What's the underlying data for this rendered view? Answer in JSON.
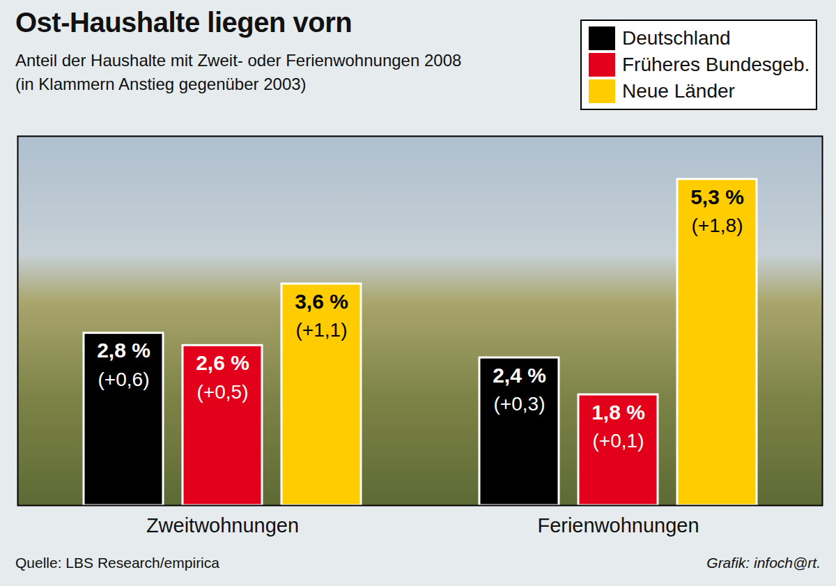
{
  "chart_data": {
    "type": "bar",
    "title": "Ost-Haushalte liegen vorn",
    "subtitle": [
      "Anteil der Haushalte mit Zweit- oder Ferienwohnungen 2008",
      "(in Klammern Anstieg gegenüber 2003)"
    ],
    "categories": [
      "Zweitwohnungen",
      "Ferienwohnungen"
    ],
    "series": [
      {
        "name": "Deutschland",
        "color": "#000000",
        "values": [
          2.8,
          2.4
        ],
        "value_labels": [
          "2,8 %",
          "2,4 %"
        ],
        "changes": [
          0.6,
          0.3
        ],
        "change_labels": [
          "(+0,6)",
          "(+0,3)"
        ]
      },
      {
        "name": "Früheres Bundesgeb.",
        "color": "#e2001a",
        "values": [
          2.6,
          1.8
        ],
        "value_labels": [
          "2,6 %",
          "1,8 %"
        ],
        "changes": [
          0.5,
          0.1
        ],
        "change_labels": [
          "(+0,5)",
          "(+0,1)"
        ]
      },
      {
        "name": "Neue Länder",
        "color": "#ffcc00",
        "values": [
          3.6,
          5.3
        ],
        "value_labels": [
          "3,6 %",
          "5,3 %"
        ],
        "changes": [
          1.1,
          1.8
        ],
        "change_labels": [
          "(+1,1)",
          "(+1,8)"
        ]
      }
    ],
    "ylim": [
      0,
      6
    ],
    "yticks": [],
    "tick_labels": "x",
    "data_labels": true,
    "legend": "top-right",
    "grid": false,
    "source": "Quelle: LBS Research/empirica",
    "credit": "Grafik: infoch@rt."
  }
}
